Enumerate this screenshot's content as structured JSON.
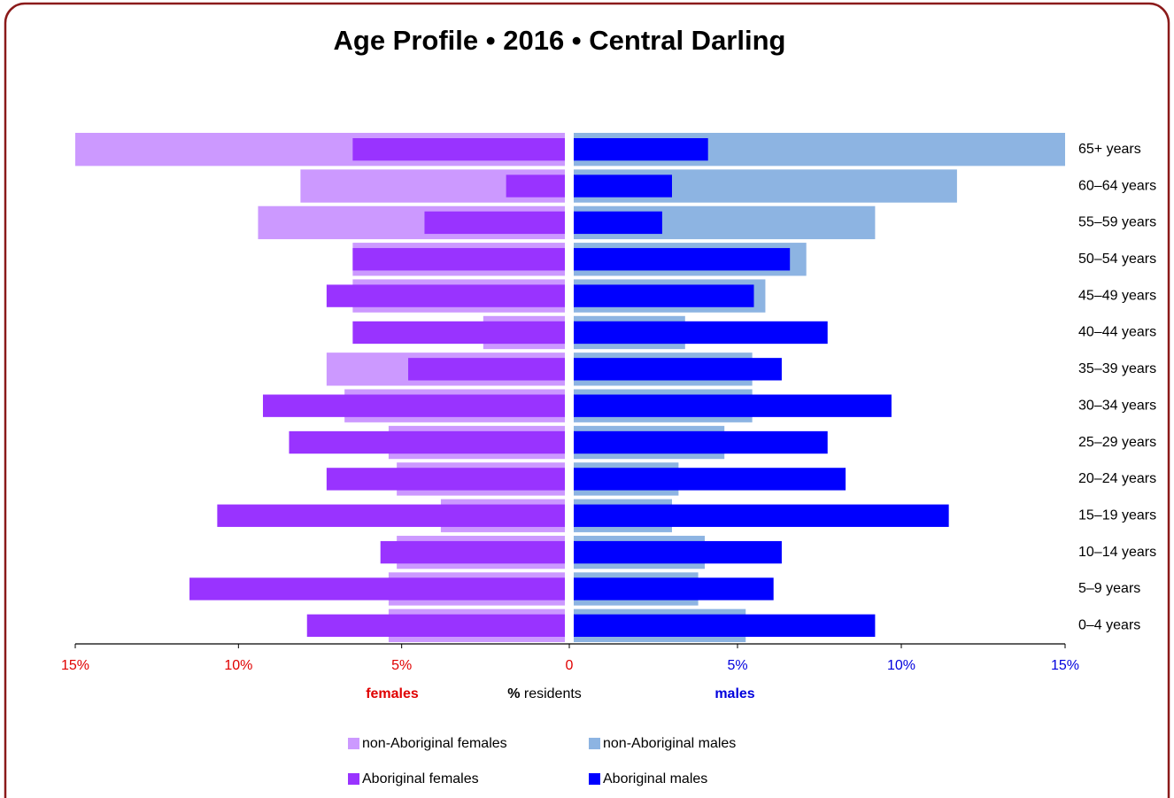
{
  "chart_data": {
    "type": "pyramid",
    "title": "Age Profile  •  2016  •  Central Darling",
    "categories": [
      "65+ years",
      "60–64 years",
      "55–59 years",
      "50–54 years",
      "45–49 years",
      "40–44 years",
      "35–39 years",
      "30–34 years",
      "25–29 years",
      "20–24 years",
      "15–19 years",
      "10–14 years",
      "5–9 years",
      "0–4 years"
    ],
    "series": [
      {
        "name": "non-Aboriginal females",
        "side": "left",
        "style": "wide",
        "color": "#cc99ff",
        "values": [
          15.0,
          8.1,
          9.4,
          6.5,
          6.5,
          2.5,
          7.3,
          6.75,
          5.4,
          5.15,
          3.8,
          5.15,
          5.4,
          5.4
        ]
      },
      {
        "name": "non-Aboriginal males",
        "side": "right",
        "style": "wide",
        "color": "#8db4e2",
        "values": [
          15.0,
          11.7,
          9.2,
          7.1,
          5.85,
          3.4,
          5.45,
          5.45,
          4.6,
          3.2,
          3.0,
          4.0,
          3.8,
          5.25
        ]
      },
      {
        "name": "Aboriginal females",
        "side": "left",
        "style": "narrow",
        "color": "#9933ff",
        "values": [
          6.5,
          1.8,
          4.3,
          6.5,
          7.3,
          6.5,
          4.8,
          9.25,
          8.45,
          7.3,
          10.65,
          5.65,
          11.5,
          7.9
        ]
      },
      {
        "name": "Aboriginal males",
        "side": "right",
        "style": "narrow",
        "color": "#0000ff",
        "values": [
          4.1,
          3.0,
          2.7,
          6.6,
          5.5,
          7.75,
          6.35,
          9.7,
          7.75,
          8.3,
          11.45,
          6.35,
          6.1,
          9.2
        ]
      }
    ],
    "xlim": [
      0,
      15
    ],
    "left_xticks": [
      {
        "value": 15,
        "label": "15%"
      },
      {
        "value": 10,
        "label": "10%"
      },
      {
        "value": 5,
        "label": "5%"
      },
      0
    ],
    "right_xticks": [
      {
        "value": 5,
        "label": "5%"
      },
      {
        "value": 10,
        "label": "10%"
      },
      {
        "value": 15,
        "label": "15%"
      }
    ],
    "left_label": "females",
    "right_label": "males",
    "x_label_symbol": "%",
    "x_label": "residents"
  }
}
